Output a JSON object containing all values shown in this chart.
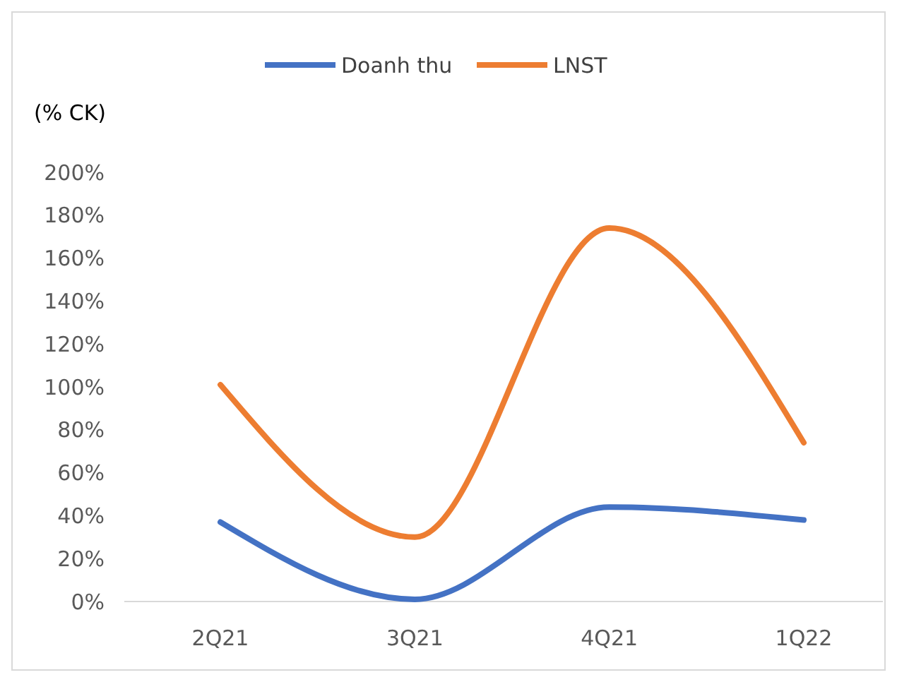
{
  "chart_data": {
    "type": "line",
    "ylabel": "(% CK)",
    "categories": [
      "2Q21",
      "3Q21",
      "4Q21",
      "1Q22"
    ],
    "series": [
      {
        "name": "Doanh thu",
        "color": "#4472c4",
        "values": [
          37,
          1,
          44,
          38
        ]
      },
      {
        "name": "LNST",
        "color": "#ed7d31",
        "values": [
          101,
          30,
          174,
          74
        ]
      }
    ],
    "ylim": [
      0,
      200
    ],
    "yticks": [
      {
        "value": 0,
        "label": "0%"
      },
      {
        "value": 20,
        "label": "20%"
      },
      {
        "value": 40,
        "label": "40%"
      },
      {
        "value": 60,
        "label": "60%"
      },
      {
        "value": 80,
        "label": "80%"
      },
      {
        "value": 100,
        "label": "100%"
      },
      {
        "value": 120,
        "label": "120%"
      },
      {
        "value": 140,
        "label": "140%"
      },
      {
        "value": 160,
        "label": "160%"
      },
      {
        "value": 180,
        "label": "180%"
      },
      {
        "value": 200,
        "label": "200%"
      }
    ],
    "legend": "top",
    "grid": false,
    "marker": "none",
    "line_style": "solid"
  }
}
